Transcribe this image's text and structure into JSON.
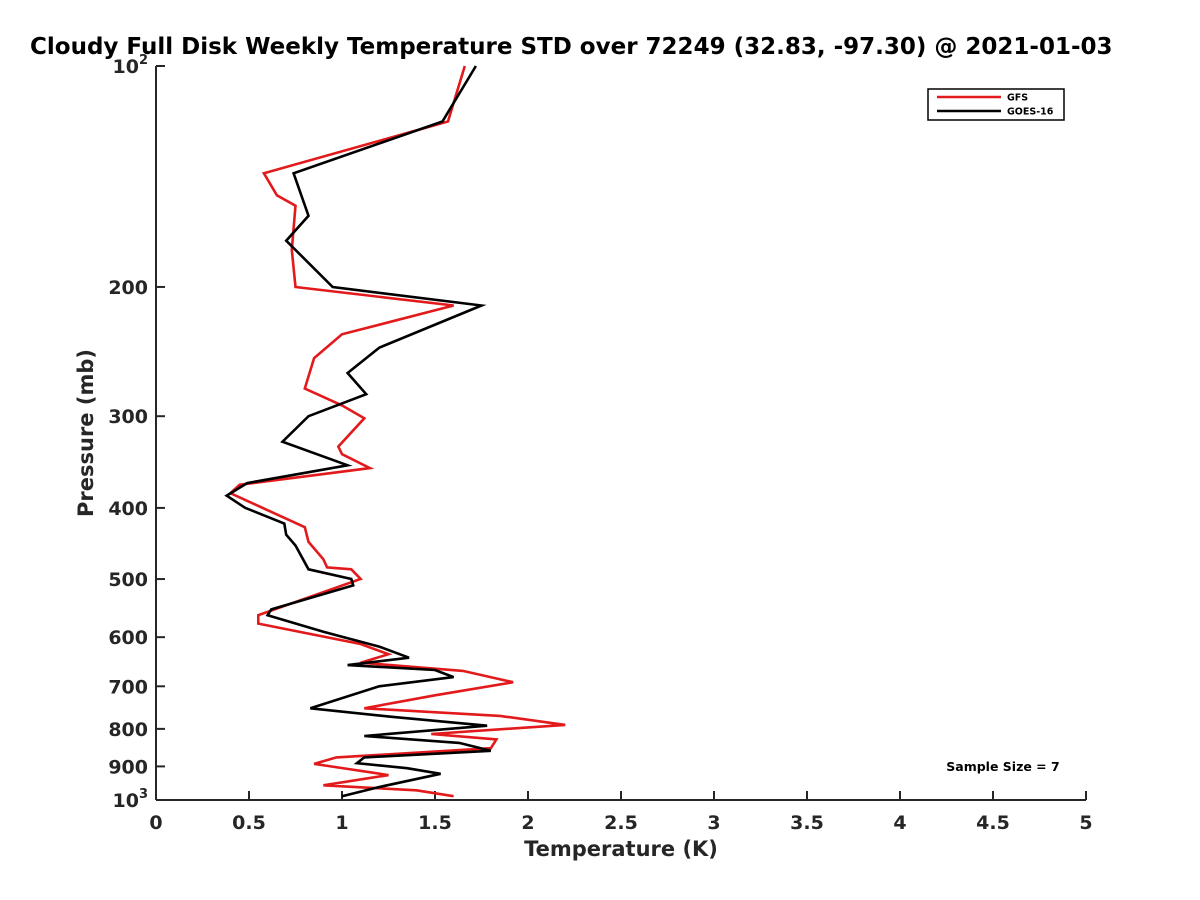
{
  "chart_data": {
    "type": "line",
    "title": "Cloudy Full Disk Weekly Temperature STD over 72249 (32.83, -97.30) @ 2021-01-03",
    "xlabel": "Temperature (K)",
    "ylabel": "Pressure (mb)",
    "xlim": [
      0,
      5
    ],
    "ylim": [
      100,
      1000
    ],
    "y_scale": "log",
    "y_reversed": true,
    "grid": false,
    "legend_position": "top-right",
    "x_ticks": [
      {
        "value": 0,
        "label": "0"
      },
      {
        "value": 0.5,
        "label": "0.5"
      },
      {
        "value": 1,
        "label": "1"
      },
      {
        "value": 1.5,
        "label": "1.5"
      },
      {
        "value": 2,
        "label": "2"
      },
      {
        "value": 2.5,
        "label": "2.5"
      },
      {
        "value": 3,
        "label": "3"
      },
      {
        "value": 3.5,
        "label": "3.5"
      },
      {
        "value": 4,
        "label": "4"
      },
      {
        "value": 4.5,
        "label": "4.5"
      },
      {
        "value": 5,
        "label": "5"
      }
    ],
    "y_ticks": [
      {
        "value": 100,
        "base": "10",
        "exp": "2"
      },
      {
        "value": 200,
        "label": "200"
      },
      {
        "value": 300,
        "label": "300"
      },
      {
        "value": 400,
        "label": "400"
      },
      {
        "value": 500,
        "label": "500"
      },
      {
        "value": 600,
        "label": "600"
      },
      {
        "value": 700,
        "label": "700"
      },
      {
        "value": 800,
        "label": "800"
      },
      {
        "value": 900,
        "label": "900"
      },
      {
        "value": 1000,
        "base": "10",
        "exp": "3"
      }
    ],
    "series": [
      {
        "name": "GFS",
        "color": "#e31a1c",
        "points": [
          [
            1.6,
            988
          ],
          [
            1.4,
            970
          ],
          [
            0.9,
            955
          ],
          [
            1.25,
            925
          ],
          [
            0.85,
            893
          ],
          [
            0.97,
            875
          ],
          [
            1.8,
            850
          ],
          [
            1.83,
            827
          ],
          [
            1.48,
            813
          ],
          [
            2.2,
            790
          ],
          [
            1.85,
            768
          ],
          [
            1.12,
            750
          ],
          [
            1.5,
            720
          ],
          [
            1.92,
            691
          ],
          [
            1.65,
            667
          ],
          [
            1.1,
            650
          ],
          [
            1.25,
            633
          ],
          [
            1.1,
            613
          ],
          [
            0.55,
            575
          ],
          [
            0.55,
            560
          ],
          [
            1.1,
            500
          ],
          [
            1.05,
            485
          ],
          [
            0.92,
            482
          ],
          [
            0.9,
            470
          ],
          [
            0.82,
            445
          ],
          [
            0.8,
            425
          ],
          [
            0.4,
            382
          ],
          [
            0.45,
            372
          ],
          [
            1.15,
            353
          ],
          [
            1.0,
            338
          ],
          [
            0.98,
            330
          ],
          [
            1.12,
            302
          ],
          [
            1.0,
            290
          ],
          [
            0.8,
            275
          ],
          [
            0.85,
            250
          ],
          [
            1.0,
            232
          ],
          [
            1.6,
            212
          ],
          [
            0.75,
            200
          ],
          [
            0.73,
            178
          ],
          [
            0.75,
            155
          ],
          [
            0.65,
            150
          ],
          [
            0.58,
            140
          ],
          [
            1.57,
            119
          ],
          [
            1.66,
            100
          ]
        ]
      },
      {
        "name": "GOES-16",
        "color": "#000000",
        "points": [
          [
            1.0,
            988
          ],
          [
            1.2,
            960
          ],
          [
            1.53,
            921
          ],
          [
            1.35,
            905
          ],
          [
            1.08,
            891
          ],
          [
            1.12,
            875
          ],
          [
            1.8,
            857
          ],
          [
            1.63,
            836
          ],
          [
            1.12,
            818
          ],
          [
            1.78,
            792
          ],
          [
            1.26,
            770
          ],
          [
            0.83,
            750
          ],
          [
            1.2,
            700
          ],
          [
            1.6,
            680
          ],
          [
            1.5,
            665
          ],
          [
            1.03,
            655
          ],
          [
            1.36,
            640
          ],
          [
            1.2,
            618
          ],
          [
            0.9,
            590
          ],
          [
            0.6,
            560
          ],
          [
            0.62,
            550
          ],
          [
            1.06,
            510
          ],
          [
            1.05,
            500
          ],
          [
            0.82,
            485
          ],
          [
            0.75,
            450
          ],
          [
            0.7,
            435
          ],
          [
            0.69,
            420
          ],
          [
            0.48,
            400
          ],
          [
            0.38,
            385
          ],
          [
            0.49,
            370
          ],
          [
            1.03,
            350
          ],
          [
            0.68,
            325
          ],
          [
            0.82,
            300
          ],
          [
            1.13,
            280
          ],
          [
            1.03,
            262
          ],
          [
            1.2,
            242
          ],
          [
            1.75,
            212
          ],
          [
            0.95,
            200
          ],
          [
            0.7,
            173
          ],
          [
            0.82,
            160
          ],
          [
            0.74,
            140
          ],
          [
            1.54,
            119
          ],
          [
            1.72,
            100
          ]
        ]
      }
    ],
    "annotation": "Sample Size = 7"
  }
}
